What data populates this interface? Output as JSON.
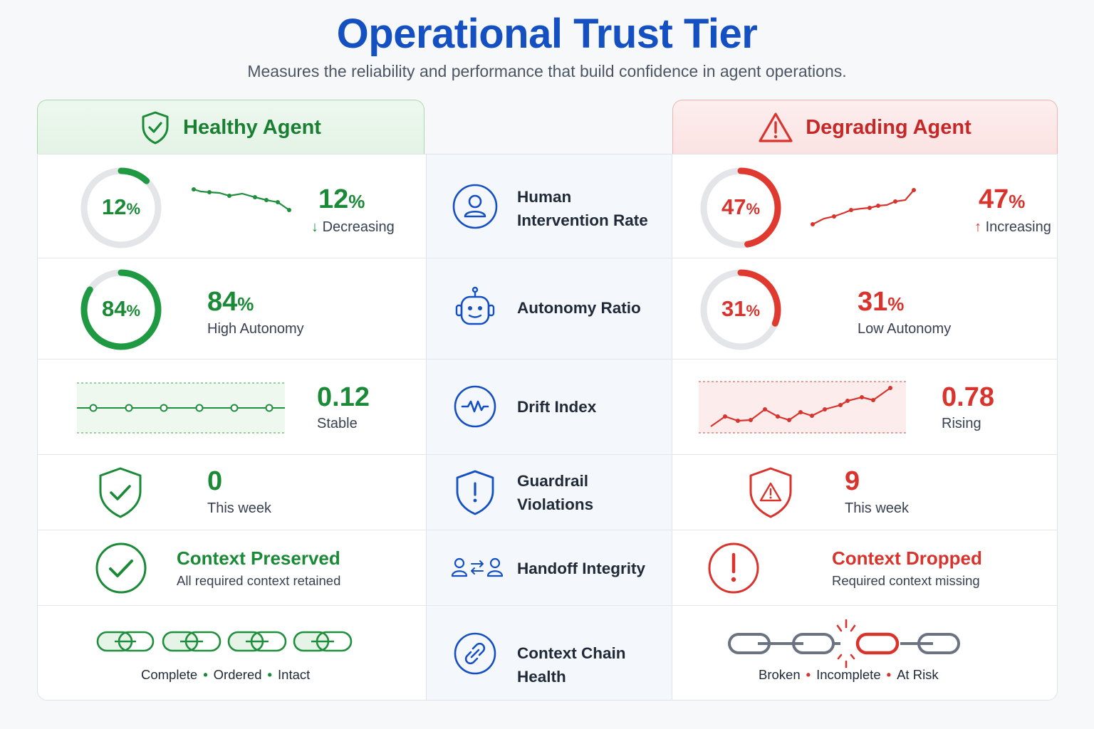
{
  "title": "Operational Trust Tier",
  "subtitle": "Measures the reliability and performance that build confidence in agent operations.",
  "colors": {
    "title": "#1550c2",
    "healthy": "#1a8a37",
    "degrading": "#d8342d",
    "metric_icon": "#1550c2"
  },
  "headers": {
    "healthy": {
      "label": "Healthy Agent",
      "icon": "shield-check-icon"
    },
    "degrading": {
      "label": "Degrading Agent",
      "icon": "warning-triangle-icon"
    }
  },
  "metrics": [
    {
      "label_line1": "Human",
      "label_line2": "Intervention Rate",
      "icon": "person-icon"
    },
    {
      "label": "Autonomy Ratio",
      "icon": "robot-icon"
    },
    {
      "label": "Drift Index",
      "icon": "waveform-icon"
    },
    {
      "label_line1": "Guardrail",
      "label_line2": "Violations",
      "icon": "shield-alert-icon"
    },
    {
      "label": "Handoff Integrity",
      "icon": "handoff-icon"
    },
    {
      "label": "Context Chain Health",
      "icon": "link-icon"
    }
  ],
  "healthy": {
    "intervention": {
      "ring_value": "12",
      "ring_unit": "%",
      "ring_fraction": 0.12,
      "value": "12",
      "unit": "%",
      "trend_arrow": "↓",
      "trend": "Decreasing"
    },
    "autonomy": {
      "ring_value": "84",
      "ring_unit": "%",
      "ring_fraction": 0.84,
      "value": "84",
      "unit": "%",
      "status": "High Autonomy"
    },
    "drift": {
      "value": "0.12",
      "status": "Stable"
    },
    "violations": {
      "value": "0",
      "period": "This week"
    },
    "handoff": {
      "title": "Context Preserved",
      "sub": "All required context retained"
    },
    "chain": {
      "c1": "Complete",
      "c2": "Ordered",
      "c3": "Intact",
      "sep": "•"
    }
  },
  "degrading": {
    "intervention": {
      "ring_value": "47",
      "ring_unit": "%",
      "ring_fraction": 0.47,
      "value": "47",
      "unit": "%",
      "trend_arrow": "↑",
      "trend": "Increasing"
    },
    "autonomy": {
      "ring_value": "31",
      "ring_unit": "%",
      "ring_fraction": 0.31,
      "value": "31",
      "unit": "%",
      "status": "Low Autonomy"
    },
    "drift": {
      "value": "0.78",
      "status": "Rising"
    },
    "violations": {
      "value": "9",
      "period": "This week"
    },
    "handoff": {
      "title": "Context Dropped",
      "sub": "Required context missing"
    },
    "chain": {
      "c1": "Broken",
      "c2": "Incomplete",
      "c3": "At Risk",
      "sep": "•"
    }
  }
}
